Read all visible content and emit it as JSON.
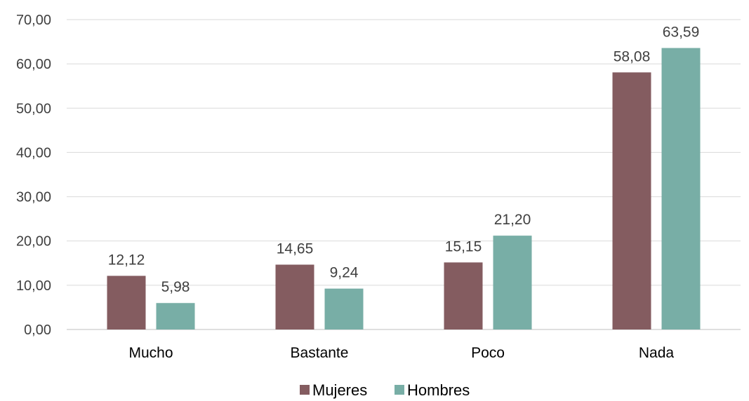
{
  "chart_data": {
    "type": "bar",
    "categories": [
      "Mucho",
      "Bastante",
      "Poco",
      "Nada"
    ],
    "series": [
      {
        "name": "Mujeres",
        "values": [
          12.12,
          14.65,
          15.15,
          58.08
        ],
        "color": "#845c60",
        "labels": [
          "12,12",
          "14,65",
          "15,15",
          "58,08"
        ]
      },
      {
        "name": "Hombres",
        "values": [
          5.98,
          9.24,
          21.2,
          63.59
        ],
        "color": "#78aea6",
        "labels": [
          "5,98",
          "9,24",
          "21,20",
          "63,59"
        ]
      }
    ],
    "ylim": [
      0,
      70
    ],
    "yticks": [
      0,
      10,
      20,
      30,
      40,
      50,
      60,
      70
    ],
    "ytick_labels": [
      "0,00",
      "10,00",
      "20,00",
      "30,00",
      "40,00",
      "50,00",
      "60,00",
      "70,00"
    ],
    "grid": true,
    "legend_position": "bottom"
  }
}
